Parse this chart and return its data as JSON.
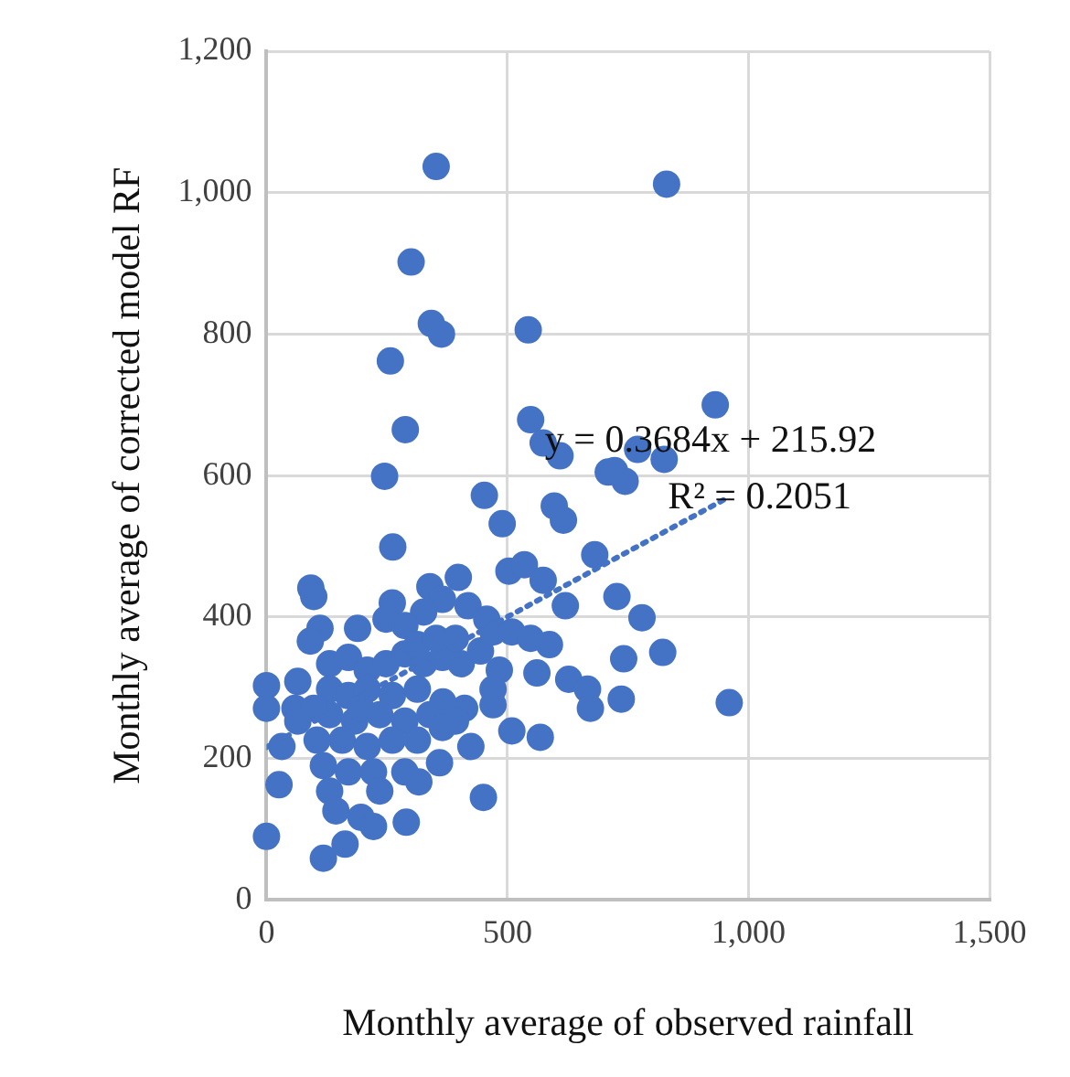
{
  "chart_data": {
    "type": "scatter",
    "xlabel": "Monthly average of observed rainfall",
    "ylabel": "Monthly average of corrected model RF",
    "xlim": [
      0,
      1500
    ],
    "xticks": [
      0,
      500,
      {
        "value": 1000,
        "label": "1,000"
      },
      {
        "value": 1500,
        "label": "1,500"
      }
    ],
    "ylim": [
      0,
      1200
    ],
    "yticks": [
      0,
      200,
      400,
      600,
      800,
      {
        "value": 1000,
        "label": "1,000"
      },
      {
        "value": 1200,
        "label": "1,200"
      }
    ],
    "grid": true,
    "legend": false,
    "marker": "circle",
    "annotations": [
      "y = 0.3684x + 215.92",
      "R² = 0.2051"
    ],
    "series": [
      {
        "color": "#4472c4",
        "x": [
          352,
          300,
          342,
          363,
          543,
          257,
          288,
          245,
          548,
          574,
          609,
          709,
          452,
          489,
          597,
          616,
          262,
          681,
          830,
          931,
          770,
          825,
          722,
          744,
          727,
          779,
          741,
          822,
          736,
          960,
          92,
          98,
          503,
          535,
          574,
          620,
          398,
          339,
          261,
          365,
          418,
          111,
          91,
          189,
          248,
          326,
          457,
          509,
          548,
          587,
          483,
          561,
          627,
          666,
          672,
          0,
          0,
          65,
          59,
          32,
          26,
          0,
          118,
          163,
          196,
          222,
          290,
          316,
          450,
          509,
          568,
          470,
          470,
          424,
          359,
          411,
          131,
          170,
          209,
          248,
          287,
          326,
          365,
          404,
          131,
          170,
          209,
          261,
          313,
          366,
          131,
          183,
          235,
          287,
          339,
          392,
          105,
          157,
          209,
          261,
          313,
          118,
          170,
          222,
          131,
          144,
          287,
          313,
          352,
          444,
          470,
          392,
          98,
          65,
          235,
          287,
          365,
          196
        ],
        "values": [
          1037,
          902,
          815,
          800,
          806,
          762,
          665,
          599,
          679,
          646,
          628,
          605,
          572,
          532,
          557,
          537,
          499,
          488,
          1012,
          700,
          637,
          623,
          607,
          592,
          429,
          399,
          341,
          350,
          284,
          279,
          441,
          429,
          465,
          474,
          452,
          416,
          456,
          443,
          420,
          425,
          416,
          384,
          366,
          384,
          397,
          407,
          397,
          379,
          370,
          361,
          325,
          321,
          312,
          298,
          271,
          303,
          271,
          309,
          271,
          217,
          163,
          90,
          59,
          79,
          117,
          104,
          110,
          167,
          145,
          239,
          230,
          276,
          298,
          217,
          194,
          271,
          334,
          343,
          325,
          334,
          348,
          334,
          343,
          334,
          298,
          289,
          298,
          289,
          298,
          280,
          262,
          253,
          262,
          253,
          262,
          253,
          226,
          226,
          217,
          226,
          226,
          190,
          181,
          181,
          154,
          126,
          388,
          361,
          370,
          352,
          379,
          370,
          271,
          253,
          154,
          181,
          244,
          271
        ]
      },
      {
        "type": "line",
        "color": "#4472c4",
        "marker": "none",
        "line_style": "dotted",
        "x": [
          0,
          960
        ],
        "values": [
          216,
          570
        ]
      }
    ]
  }
}
